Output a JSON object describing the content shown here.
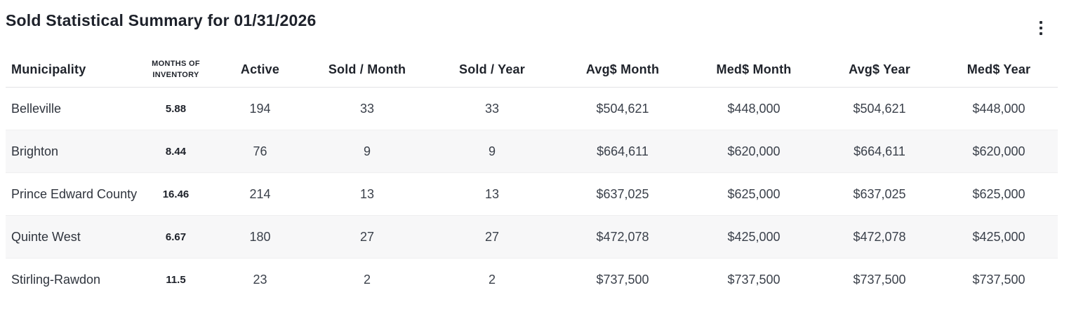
{
  "header": {
    "title": "Sold Statistical Summary for 01/31/2026",
    "menu_icon": "kebab-menu"
  },
  "table": {
    "columns": [
      {
        "key": "municipality",
        "label": "Municipality"
      },
      {
        "key": "months_of_inventory",
        "label": "MONTHS OF INVENTORY"
      },
      {
        "key": "active",
        "label": "Active"
      },
      {
        "key": "sold_month",
        "label": "Sold / Month"
      },
      {
        "key": "sold_year",
        "label": "Sold / Year"
      },
      {
        "key": "avg_month",
        "label": "Avg$ Month"
      },
      {
        "key": "med_month",
        "label": "Med$ Month"
      },
      {
        "key": "avg_year",
        "label": "Avg$ Year"
      },
      {
        "key": "med_year",
        "label": "Med$ Year"
      }
    ],
    "rows": [
      {
        "municipality": "Belleville",
        "months_of_inventory": "5.88",
        "active": "194",
        "sold_month": "33",
        "sold_year": "33",
        "avg_month": "$504,621",
        "med_month": "$448,000",
        "avg_year": "$504,621",
        "med_year": "$448,000"
      },
      {
        "municipality": "Brighton",
        "months_of_inventory": "8.44",
        "active": "76",
        "sold_month": "9",
        "sold_year": "9",
        "avg_month": "$664,611",
        "med_month": "$620,000",
        "avg_year": "$664,611",
        "med_year": "$620,000"
      },
      {
        "municipality": "Prince Edward County",
        "months_of_inventory": "16.46",
        "active": "214",
        "sold_month": "13",
        "sold_year": "13",
        "avg_month": "$637,025",
        "med_month": "$625,000",
        "avg_year": "$637,025",
        "med_year": "$625,000"
      },
      {
        "municipality": "Quinte West",
        "months_of_inventory": "6.67",
        "active": "180",
        "sold_month": "27",
        "sold_year": "27",
        "avg_month": "$472,078",
        "med_month": "$425,000",
        "avg_year": "$472,078",
        "med_year": "$425,000"
      },
      {
        "municipality": "Stirling-Rawdon",
        "months_of_inventory": "11.5",
        "active": "23",
        "sold_month": "2",
        "sold_year": "2",
        "avg_month": "$737,500",
        "med_month": "$737,500",
        "avg_year": "$737,500",
        "med_year": "$737,500"
      }
    ]
  },
  "colors": {
    "title_text": "#1d212a",
    "header_text": "#20242c",
    "body_text": "#3b414b",
    "row_alt_bg": "#f7f7f8",
    "header_border": "#e3e3e5",
    "row_border": "#efeff0"
  }
}
